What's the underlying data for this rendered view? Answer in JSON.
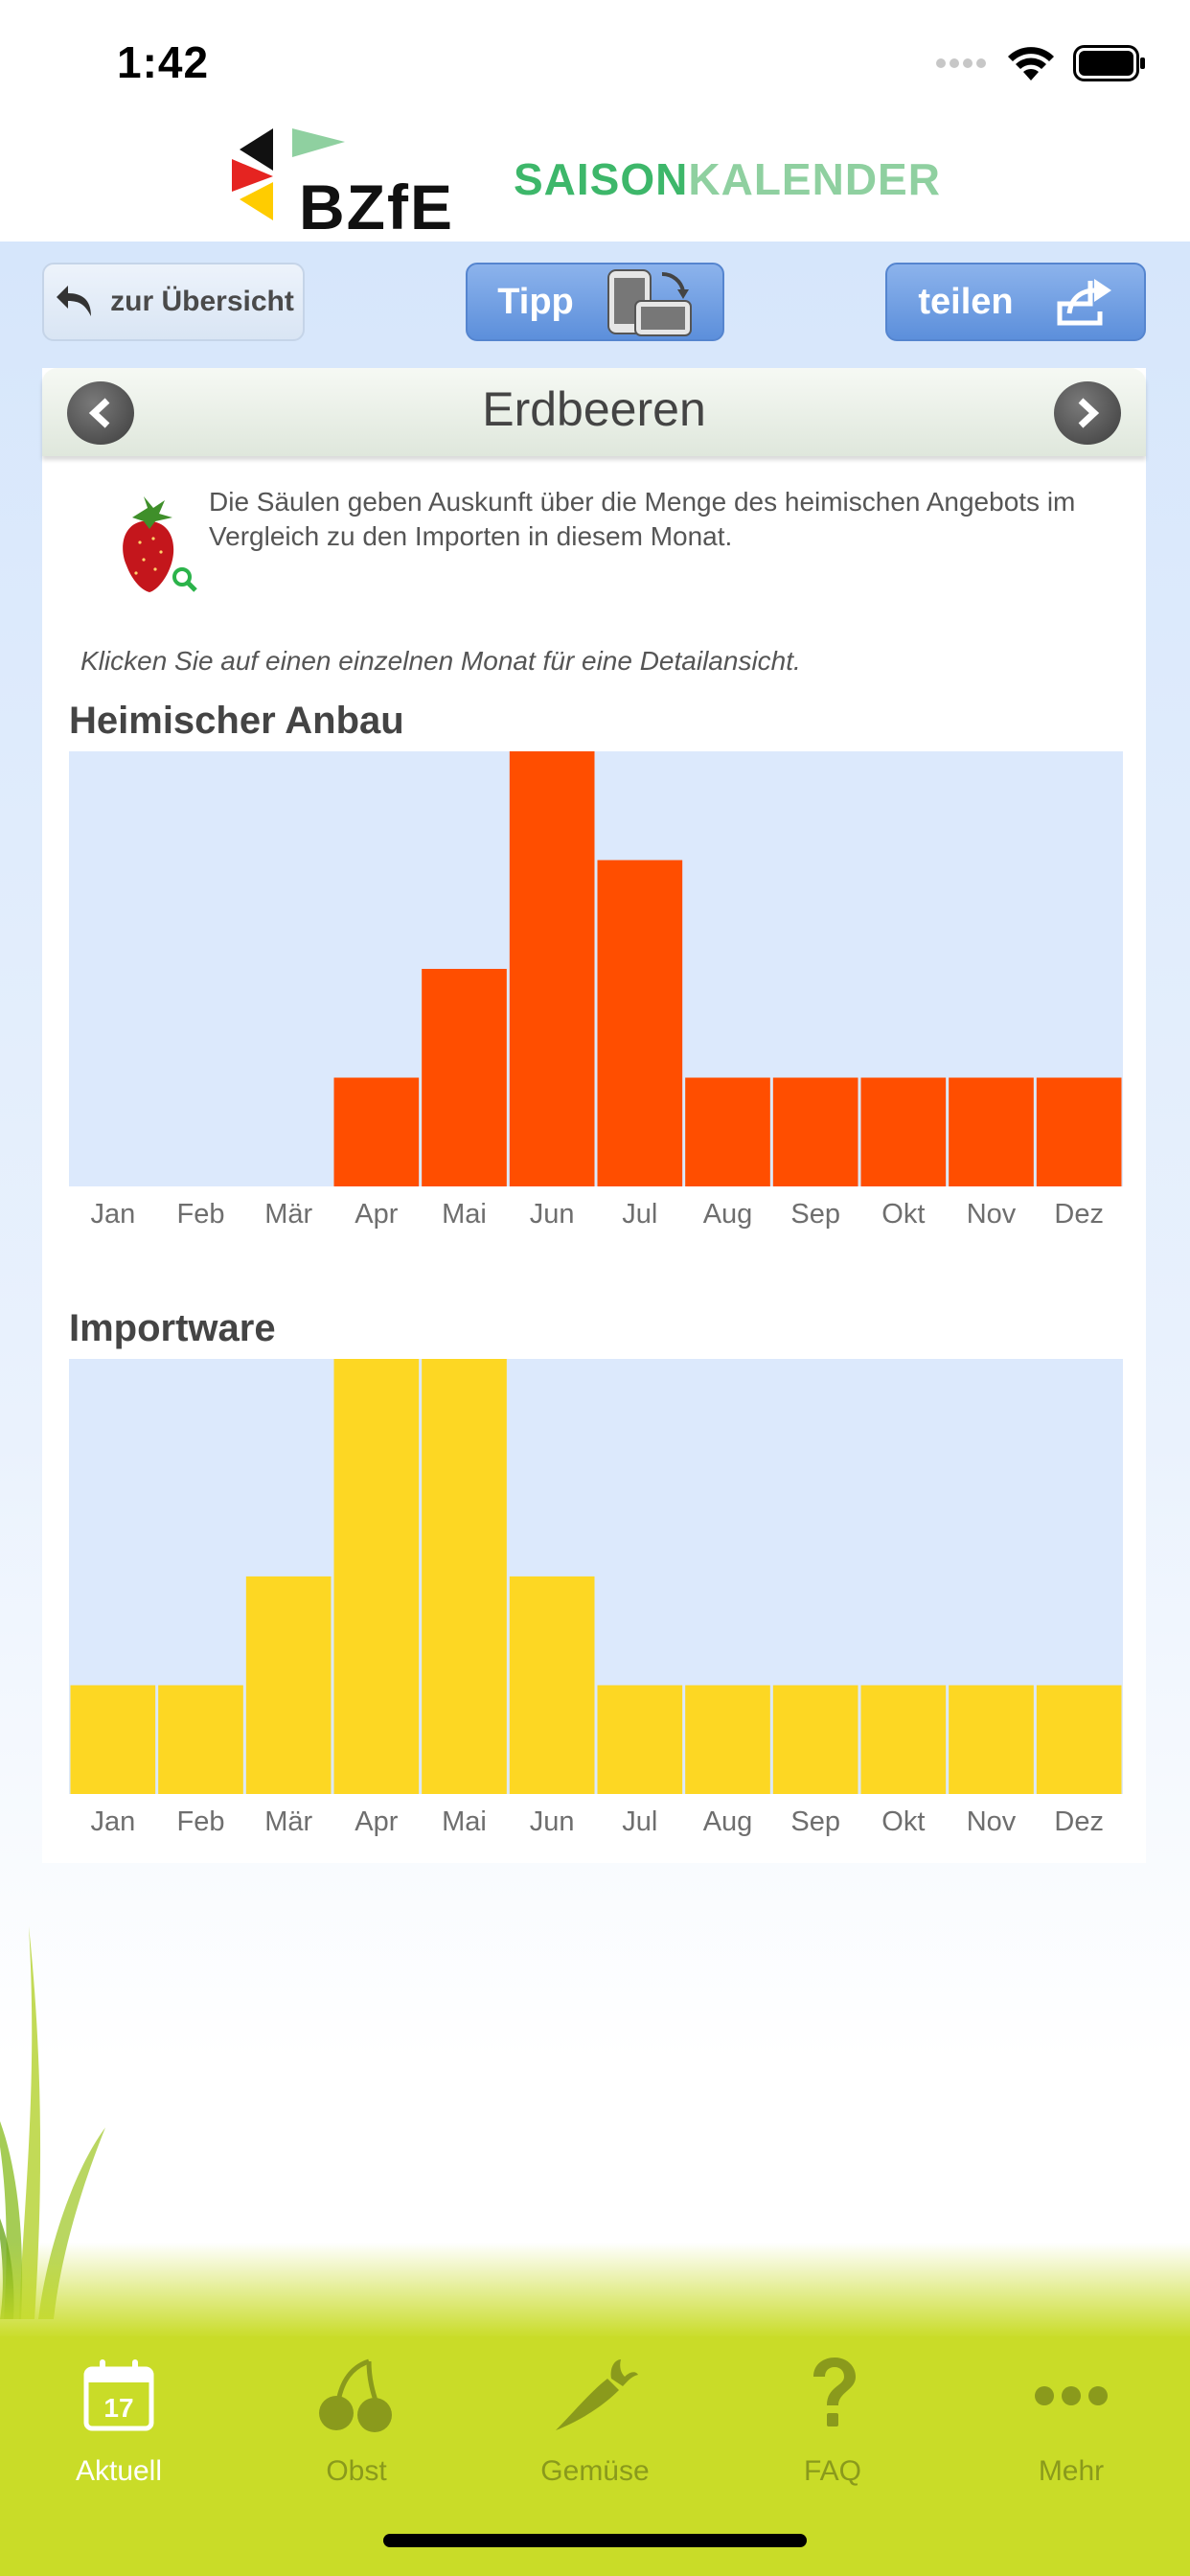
{
  "status_bar": {
    "time": "1:42"
  },
  "header": {
    "logo_text": "BZfE",
    "title_part1": "SAISON",
    "title_part2": "KALENDER"
  },
  "toolbar": {
    "back_label": "zur Übersicht",
    "tip_label": "Tipp",
    "share_label": "teilen"
  },
  "product": {
    "name": "Erdbeeren",
    "description": "Die Säulen geben Auskunft über die Menge des heimischen Angebots im Vergleich zu den Importen in diesem Monat.",
    "hint": "Klicken Sie auf einen einzelnen Monat für eine Detailansicht."
  },
  "chart_data": [
    {
      "type": "bar",
      "title": "Heimischer Anbau",
      "categories": [
        "Jan",
        "Feb",
        "Mär",
        "Apr",
        "Mai",
        "Jun",
        "Jul",
        "Aug",
        "Sep",
        "Okt",
        "Nov",
        "Dez"
      ],
      "values": [
        0,
        0,
        0,
        1,
        2,
        4,
        3,
        1,
        1,
        1,
        1,
        1
      ],
      "ylim": [
        0,
        4
      ],
      "color": "#ff4e00",
      "background": "#dce9fc"
    },
    {
      "type": "bar",
      "title": "Importware",
      "categories": [
        "Jan",
        "Feb",
        "Mär",
        "Apr",
        "Mai",
        "Jun",
        "Jul",
        "Aug",
        "Sep",
        "Okt",
        "Nov",
        "Dez"
      ],
      "values": [
        1,
        1,
        2,
        4,
        4,
        2,
        1,
        1,
        1,
        1,
        1,
        1
      ],
      "ylim": [
        0,
        4
      ],
      "color": "#fdd723",
      "background": "#dce9fc"
    }
  ],
  "tabbar": {
    "items": [
      {
        "label": "Aktuell",
        "icon": "calendar-icon",
        "badge": "17",
        "active": true
      },
      {
        "label": "Obst",
        "icon": "cherries-icon",
        "active": false
      },
      {
        "label": "Gemüse",
        "icon": "carrot-icon",
        "active": false
      },
      {
        "label": "FAQ",
        "icon": "question-icon",
        "active": false
      },
      {
        "label": "Mehr",
        "icon": "more-dots-icon",
        "active": false
      }
    ],
    "active_color": "#ffffff",
    "inactive_color": "#8a9a1c"
  }
}
